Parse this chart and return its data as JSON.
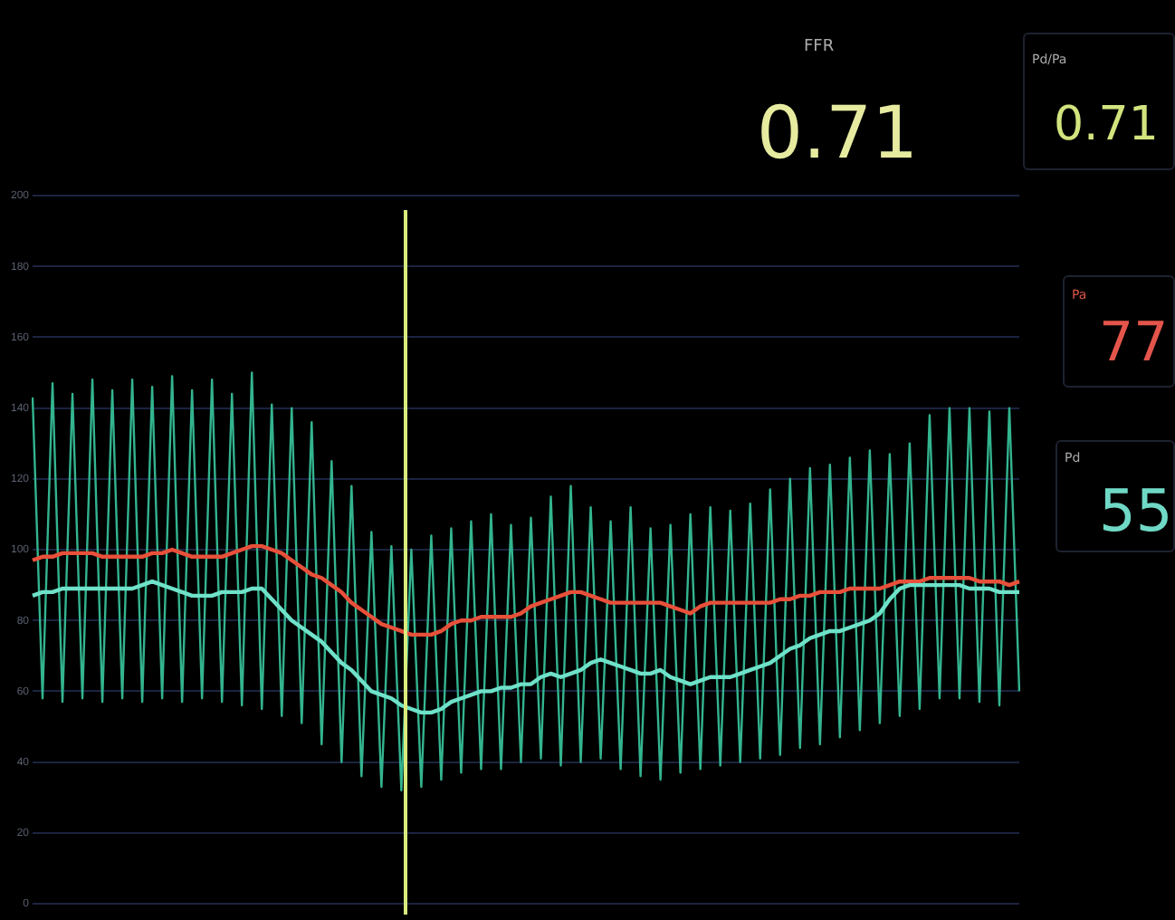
{
  "chart_data": {
    "type": "line",
    "categories": [
      null,
      null,
      null,
      null,
      null,
      null,
      null,
      null,
      null,
      null,
      null,
      null,
      null,
      null,
      null,
      null,
      null,
      null,
      null,
      null,
      null,
      null,
      null,
      null,
      null,
      null,
      null,
      null,
      null,
      null,
      null,
      null,
      null,
      null,
      null,
      null,
      null,
      null,
      null,
      null,
      null,
      null,
      null,
      null,
      null,
      null,
      null,
      null,
      null,
      null,
      null,
      null,
      null,
      null,
      null,
      null,
      null,
      null,
      null,
      null,
      null,
      null,
      null,
      null,
      null,
      null,
      null,
      null,
      null,
      null,
      null,
      null,
      null,
      null,
      null,
      null,
      null,
      null,
      null,
      null,
      null,
      null,
      null,
      null,
      null,
      null,
      null,
      null,
      null,
      null,
      null,
      null,
      null,
      null,
      null,
      null,
      null,
      null,
      null,
      null
    ],
    "series": [
      {
        "color": "#33b48f",
        "values": [
          143,
          58,
          147,
          57,
          144,
          58,
          148,
          57,
          145,
          58,
          148,
          57,
          146,
          58,
          149,
          57,
          145,
          58,
          148,
          57,
          144,
          56,
          150,
          55,
          141,
          53,
          140,
          51,
          136,
          45,
          125,
          40,
          118,
          36,
          105,
          33,
          101,
          32,
          100,
          33,
          104,
          35,
          106,
          37,
          108,
          38,
          110,
          38,
          107,
          40,
          109,
          41,
          115,
          39,
          118,
          40,
          112,
          41,
          108,
          38,
          112,
          36,
          106,
          35,
          107,
          37,
          110,
          38,
          112,
          39,
          111,
          40,
          113,
          41,
          117,
          42,
          120,
          44,
          123,
          45,
          124,
          47,
          126,
          49,
          128,
          51,
          127,
          53,
          130,
          55,
          138,
          58,
          140,
          58,
          140,
          57,
          139,
          56,
          140,
          60
        ]
      },
      {
        "color": "#e8503a",
        "values": [
          97,
          98,
          98,
          99,
          99,
          99,
          99,
          98,
          98,
          98,
          98,
          98,
          99,
          99,
          100,
          99,
          98,
          98,
          98,
          98,
          99,
          100,
          101,
          101,
          100,
          99,
          97,
          95,
          93,
          92,
          90,
          88,
          85,
          83,
          81,
          79,
          78,
          77,
          76,
          76,
          76,
          77,
          79,
          80,
          80,
          81,
          81,
          81,
          81,
          82,
          84,
          85,
          86,
          87,
          88,
          88,
          87,
          86,
          85,
          85,
          85,
          85,
          85,
          85,
          84,
          83,
          82,
          84,
          85,
          85,
          85,
          85,
          85,
          85,
          85,
          86,
          86,
          87,
          87,
          88,
          88,
          88,
          89,
          89,
          89,
          89,
          90,
          91,
          91,
          91,
          92,
          92,
          92,
          92,
          92,
          91,
          91,
          91,
          90,
          91
        ]
      },
      {
        "color": "#6fe2c9",
        "values": [
          87,
          88,
          88,
          89,
          89,
          89,
          89,
          89,
          89,
          89,
          89,
          90,
          91,
          90,
          89,
          88,
          87,
          87,
          87,
          88,
          88,
          88,
          89,
          89,
          86,
          83,
          80,
          78,
          76,
          74,
          71,
          68,
          66,
          63,
          60,
          59,
          58,
          56,
          55,
          54,
          54,
          55,
          57,
          58,
          59,
          60,
          60,
          61,
          61,
          62,
          62,
          64,
          65,
          64,
          65,
          66,
          68,
          69,
          68,
          67,
          66,
          65,
          65,
          66,
          64,
          63,
          62,
          63,
          64,
          64,
          64,
          65,
          66,
          67,
          68,
          70,
          72,
          73,
          75,
          76,
          77,
          77,
          78,
          79,
          80,
          82,
          86,
          89,
          90,
          90,
          90,
          90,
          90,
          90,
          89,
          89,
          89,
          88,
          88,
          88
        ]
      }
    ],
    "ylim": [
      0,
      200
    ],
    "yticks": [
      0,
      20,
      40,
      60,
      80,
      100,
      120,
      140,
      160,
      180,
      200
    ],
    "grid": "y",
    "legend": false,
    "marker": "none",
    "tick_labels": "y",
    "annotations": [
      "FFR",
      "0.71",
      "Pd/Pa",
      "0.71",
      "Pa",
      "77",
      "Pd",
      "55"
    ]
  }
}
